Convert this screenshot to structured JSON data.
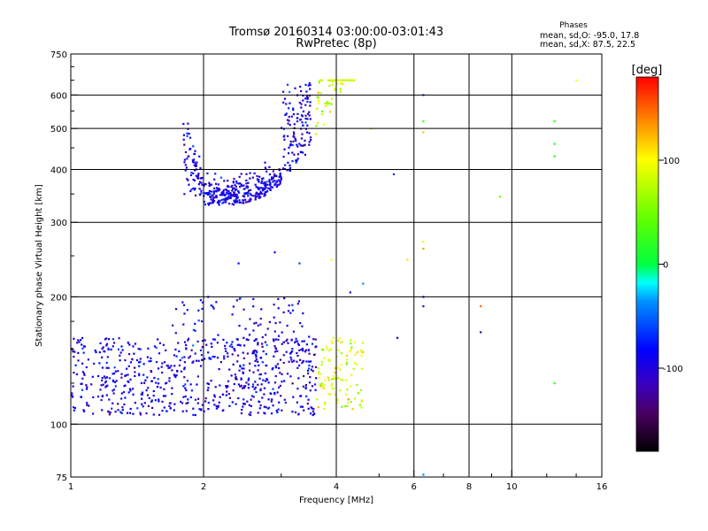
{
  "chart_data": {
    "type": "scatter",
    "title": "Tromsø 20160314 03:00:00-03:01:43",
    "subtitle": "RwPretec (8p)",
    "phases": {
      "heading": "Phases",
      "line_o": "mean, sd,O: -95.0, 17.8",
      "line_x": "mean, sd,X:  87.5, 22.5"
    },
    "xlabel": "Frequency [MHz]",
    "ylabel": "Stationary phase Virtual Height [km]",
    "x_scale": "log",
    "y_scale": "log",
    "xlim": [
      1,
      16
    ],
    "ylim": [
      75,
      750
    ],
    "x_ticks": [
      1,
      2,
      4,
      6,
      8,
      10,
      16
    ],
    "x_tick_labels": [
      "1",
      "2",
      "4",
      "6",
      "8",
      "10",
      "16"
    ],
    "x_grid": [
      2,
      4,
      6,
      8,
      10
    ],
    "y_ticks": [
      75,
      100,
      200,
      300,
      400,
      500,
      600,
      750
    ],
    "y_tick_labels": [
      "75",
      "100",
      "200",
      "300",
      "400",
      "500",
      "600",
      "750"
    ],
    "y_grid": [
      100,
      200,
      300,
      400,
      500,
      600
    ],
    "grid": true,
    "colorbar": {
      "label": "[deg]",
      "range": [
        -180,
        180
      ],
      "ticks": [
        -100,
        0,
        100
      ],
      "tick_labels": [
        "-100",
        "0",
        "100"
      ],
      "colormap": "rainbow (black-purple-blue-cyan-green-yellow-red)"
    },
    "clusters": [
      {
        "name": "E-region O-mode band",
        "x": [
          1.0,
          3.6
        ],
        "y": [
          105,
          160
        ],
        "phase_mean": -95,
        "phase_sd": 17.8,
        "n": 650
      },
      {
        "name": "E-region spread",
        "x": [
          1.7,
          3.5
        ],
        "y": [
          140,
          200
        ],
        "phase_mean": -95,
        "phase_sd": 17.8,
        "n": 120
      },
      {
        "name": "F-region O-mode trace",
        "x": [
          1.8,
          3.5
        ],
        "y": [
          330,
          640
        ],
        "phase_mean": -95,
        "phase_sd": 17.8,
        "n": 520
      },
      {
        "name": "E-region X-mode",
        "x": [
          3.6,
          4.6
        ],
        "y": [
          108,
          160
        ],
        "phase_mean": 87.5,
        "phase_sd": 22.5,
        "n": 110
      },
      {
        "name": "F-region X-mode",
        "x": [
          3.6,
          4.4
        ],
        "y": [
          380,
          650
        ],
        "phase_mean": 87.5,
        "phase_sd": 22.5,
        "n": 90
      }
    ],
    "sparse_points": [
      {
        "x": 6.3,
        "y": 600,
        "phase": -60
      },
      {
        "x": 6.3,
        "y": 520,
        "phase": 30
      },
      {
        "x": 6.3,
        "y": 490,
        "phase": 120
      },
      {
        "x": 6.3,
        "y": 270,
        "phase": 90
      },
      {
        "x": 6.3,
        "y": 260,
        "phase": 130
      },
      {
        "x": 6.3,
        "y": 200,
        "phase": -100
      },
      {
        "x": 6.3,
        "y": 190,
        "phase": -110
      },
      {
        "x": 6.3,
        "y": 76,
        "phase": -40
      },
      {
        "x": 5.8,
        "y": 245,
        "phase": 110
      },
      {
        "x": 5.5,
        "y": 160,
        "phase": -90
      },
      {
        "x": 5.4,
        "y": 390,
        "phase": -70
      },
      {
        "x": 4.8,
        "y": 500,
        "phase": 110
      },
      {
        "x": 8.5,
        "y": 190,
        "phase": 150
      },
      {
        "x": 8.5,
        "y": 165,
        "phase": -120
      },
      {
        "x": 9.4,
        "y": 345,
        "phase": 50
      },
      {
        "x": 12.5,
        "y": 520,
        "phase": 20
      },
      {
        "x": 12.5,
        "y": 460,
        "phase": 10
      },
      {
        "x": 12.5,
        "y": 430,
        "phase": 20
      },
      {
        "x": 12.5,
        "y": 125,
        "phase": 20
      },
      {
        "x": 14.0,
        "y": 650,
        "phase": 100
      },
      {
        "x": 4.3,
        "y": 205,
        "phase": -120
      },
      {
        "x": 4.6,
        "y": 215,
        "phase": -40
      },
      {
        "x": 2.9,
        "y": 255,
        "phase": -90
      },
      {
        "x": 3.3,
        "y": 240,
        "phase": -60
      },
      {
        "x": 3.9,
        "y": 245,
        "phase": 100
      },
      {
        "x": 2.4,
        "y": 240,
        "phase": -80
      }
    ]
  }
}
